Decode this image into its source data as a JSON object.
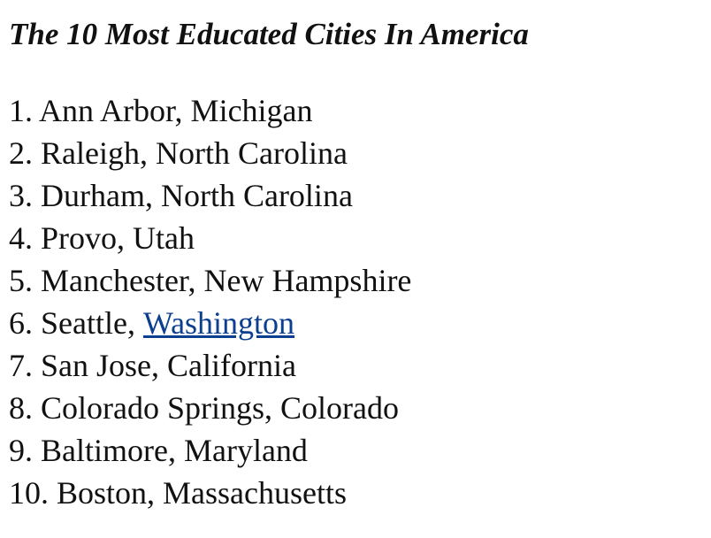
{
  "header": {
    "title": "The 10 Most Educated Cities In America"
  },
  "list": {
    "items": [
      {
        "text": "1. Ann Arbor, Michigan"
      },
      {
        "text": "2. Raleigh, North Carolina"
      },
      {
        "text": "3. Durham, North Carolina"
      },
      {
        "text": "4. Provo, Utah"
      },
      {
        "text": "5. Manchester, New Hampshire"
      },
      {
        "text": "6. Seattle,",
        "link": "Washington"
      },
      {
        "text": "7. San Jose, California"
      },
      {
        "text": "8. Colorado Springs, Colorado"
      },
      {
        "text": "9. Baltimore, Maryland"
      },
      {
        "text": "10. Boston, Massachusetts"
      }
    ]
  }
}
